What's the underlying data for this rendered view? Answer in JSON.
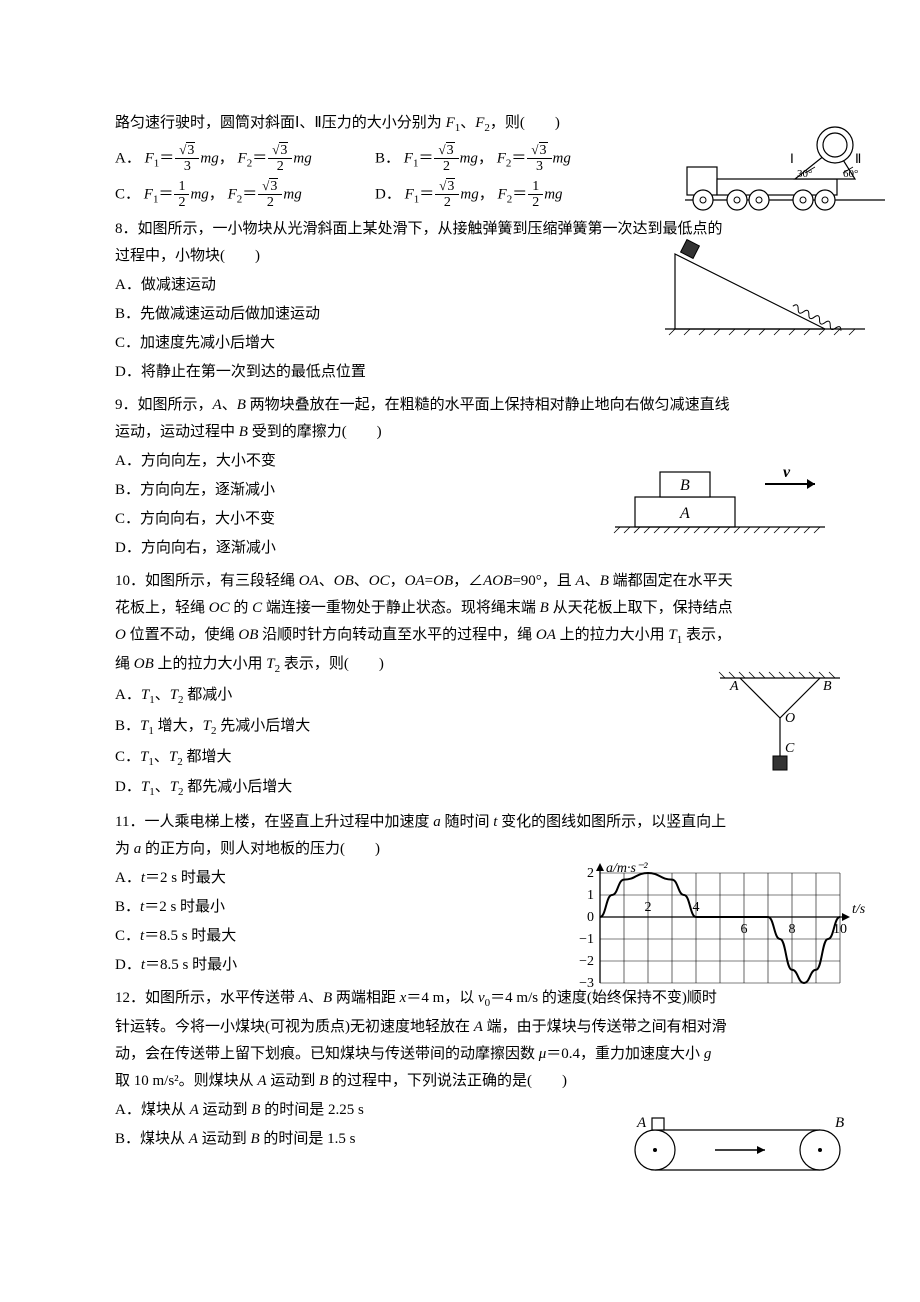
{
  "q7": {
    "stem": "路匀速行驶时，圆筒对斜面Ⅰ、Ⅱ压力的大小分别为",
    "var1": "F",
    "sub1": "1",
    "var2": "F",
    "sub2": "2",
    "tail": "，则(　　)",
    "A_label": "A．",
    "B_label": "B．",
    "C_label": "C．",
    "D_label": "D．",
    "mg": "mg",
    "comma": "，",
    "eqF1": "F₁＝",
    "eqF2": "F₂＝",
    "sqrt3": "3",
    "n3": "3",
    "n2": "2",
    "n1": "1",
    "truck_angle1": "30°",
    "truck_angle2": "60°",
    "truck_label1": "Ⅰ",
    "truck_label2": "Ⅱ",
    "truck_stroke": "#000000",
    "truck_fill": "#ffffff"
  },
  "q8": {
    "stem_l1": "8．如图所示，一小物块从光滑斜面上某处滑下，从接触弹簧到压缩弹簧第一次达到最低点的",
    "stem_l2": "过程中，小物块(　　)",
    "A": "A．做减速运动",
    "B": "B．先做减速运动后做加速运动",
    "C": "C．加速度先减小后增大",
    "D": "D．将静止在第一次到达的最低点位置",
    "stroke": "#000000"
  },
  "q9": {
    "stem_l1_p1": "9．如图所示，",
    "stem_l1_A": "A",
    "stem_l1_p2": "、",
    "stem_l1_B": "B",
    "stem_l1_p3": " 两物块叠放在一起，在粗糙的水平面上保持相对静止地向右做匀减速直线",
    "stem_l2_p1": "运动，运动过程中 ",
    "stem_l2_B": "B",
    "stem_l2_p2": " 受到的摩擦力(　　)",
    "A": "A．方向向左，大小不变",
    "B": "B．方向向左，逐渐减小",
    "C": "C．方向向右，大小不变",
    "D": "D．方向向右，逐渐减小",
    "fig_A": "A",
    "fig_B": "B",
    "fig_v": "v",
    "stroke": "#000000"
  },
  "q10": {
    "stem_l1_p1": "10．如图所示，有三段轻绳 ",
    "OA": "OA",
    "p2": "、",
    "OB": "OB",
    "p3": "、",
    "OC": "OC",
    "p4": "，",
    "OA2": "OA",
    "eq": "=",
    "OB2": "OB",
    "p5": "，∠",
    "AOB": "AOB",
    "ang": "=90°，且 ",
    "A": "A",
    "p6": "、",
    "B": "B",
    "p7": " 端都固定在水平天",
    "stem_l2_p1": "花板上，轻绳 ",
    "OC2": "OC",
    "p8": " 的 ",
    "C": "C",
    "p9": " 端连接一重物处于静止状态。现将绳末端 ",
    "B2": "B",
    "p10": " 从天花板上取下，保持结点",
    "stem_l3_p1": "",
    "O": "O",
    "p11": " 位置不动，使绳 ",
    "OB3": "OB",
    "p12": " 沿顺时针方向转动直至水平的过程中，绳 ",
    "OA3": "OA",
    "p13": " 上的拉力大小用 ",
    "T1": "T",
    "T1s": "1",
    "p14": " 表示，",
    "stem_l4_p1": "绳 ",
    "OB4": "OB",
    "p15": " 上的拉力大小用 ",
    "T2": "T",
    "T2s": "2",
    "p16": " 表示，则(　　)",
    "optA_p1": "A．",
    "optA_T1": "T",
    "optA_T1s": "1",
    "optA_p2": "、",
    "optA_T2": "T",
    "optA_T2s": "2",
    "optA_p3": " 都减小",
    "optB_p1": "B．",
    "optB_T1": "T",
    "optB_T1s": "1",
    "optB_p2": " 增大，",
    "optB_T2": "T",
    "optB_T2s": "2",
    "optB_p3": " 先减小后增大",
    "optC_p1": "C．",
    "optC_T1": "T",
    "optC_T1s": "1",
    "optC_p2": "、",
    "optC_T2": "T",
    "optC_T2s": "2",
    "optC_p3": " 都增大",
    "optD_p1": "D．",
    "optD_T1": "T",
    "optD_T1s": "1",
    "optD_p2": "、",
    "optD_T2": "T",
    "optD_T2s": "2",
    "optD_p3": " 都先减小后增大",
    "fig_A": "A",
    "fig_B": "B",
    "fig_O": "O",
    "fig_C": "C",
    "stroke": "#000000"
  },
  "q11": {
    "stem_l1_p1": "11．一人乘电梯上楼，在竖直上升过程中加速度 ",
    "a": "a",
    "p2": " 随时间 ",
    "t": "t",
    "p3": " 变化的图线如图所示，以竖直向上",
    "stem_l2_p1": "为 ",
    "a2": "a",
    "p4": " 的正方向，则人对地板的压力(　　)",
    "A_p1": "A．",
    "A_t": "t",
    "A_p2": "＝2 s 时最大",
    "B_p1": "B．",
    "B_t": "t",
    "B_p2": "＝2 s 时最小",
    "C_p1": "C．",
    "C_t": "t",
    "C_p2": "＝8.5 s 时最大",
    "D_p1": "D．",
    "D_t": "t",
    "D_p2": "＝8.5 s 时最小",
    "chart": {
      "type": "line",
      "ylabel": "a/m·s⁻²",
      "xlabel": "t/s",
      "xlim": [
        0,
        10
      ],
      "ylim": [
        -3,
        2
      ],
      "xticks": [
        0,
        2,
        4,
        6,
        8,
        10
      ],
      "yticks": [
        -3,
        -2,
        -1,
        0,
        1,
        2
      ],
      "points": [
        [
          0,
          0
        ],
        [
          0.5,
          1
        ],
        [
          1,
          1.7
        ],
        [
          2,
          2
        ],
        [
          3,
          1.7
        ],
        [
          3.5,
          1
        ],
        [
          4,
          0
        ],
        [
          7,
          0
        ],
        [
          7.5,
          -1
        ],
        [
          8,
          -2.4
        ],
        [
          8.5,
          -3
        ],
        [
          9,
          -2.4
        ],
        [
          9.5,
          -1
        ],
        [
          10,
          0
        ]
      ],
      "stroke": "#000000",
      "grid_color": "#000000",
      "bg": "#ffffff",
      "line_width": 2,
      "font_size": 14
    }
  },
  "q12": {
    "stem_l1_p1": "12．如图所示，水平传送带 ",
    "A": "A",
    "p2": "、",
    "B": "B",
    "p3": " 两端相距 ",
    "x": "x",
    "p4": "＝4 m，以 ",
    "v0": "v",
    "v0s": "0",
    "p5": "＝4 m/s 的速度(始终保持不变)顺时",
    "stem_l2": "针运转。今将一小煤块(可视为质点)无初速度地轻放在 ",
    "A2": "A",
    "p6": " 端，由于煤块与传送带之间有相对滑",
    "stem_l3_p1": "动，会在传送带上留下划痕。已知煤块与传送带间的动摩擦因数 ",
    "mu": "μ",
    "p7": "＝0.4，重力加速度大小 ",
    "g": "g",
    "stem_l4_p1": "取 10 m/s²。则煤块从 ",
    "A3": "A",
    "p8": " 运动到 ",
    "B3": "B",
    "p9": " 的过程中，下列说法正确的是(　　)",
    "optA_p1": "A．煤块从 ",
    "optA_A": "A",
    "optA_p2": " 运动到 ",
    "optA_B": "B",
    "optA_p3": " 的时间是 2.25 s",
    "optB_p1": "B．煤块从 ",
    "optB_A": "A",
    "optB_p2": " 运动到 ",
    "optB_B": "B",
    "optB_p3": " 的时间是 1.5 s",
    "fig_A": "A",
    "fig_B": "B",
    "stroke": "#000000"
  }
}
